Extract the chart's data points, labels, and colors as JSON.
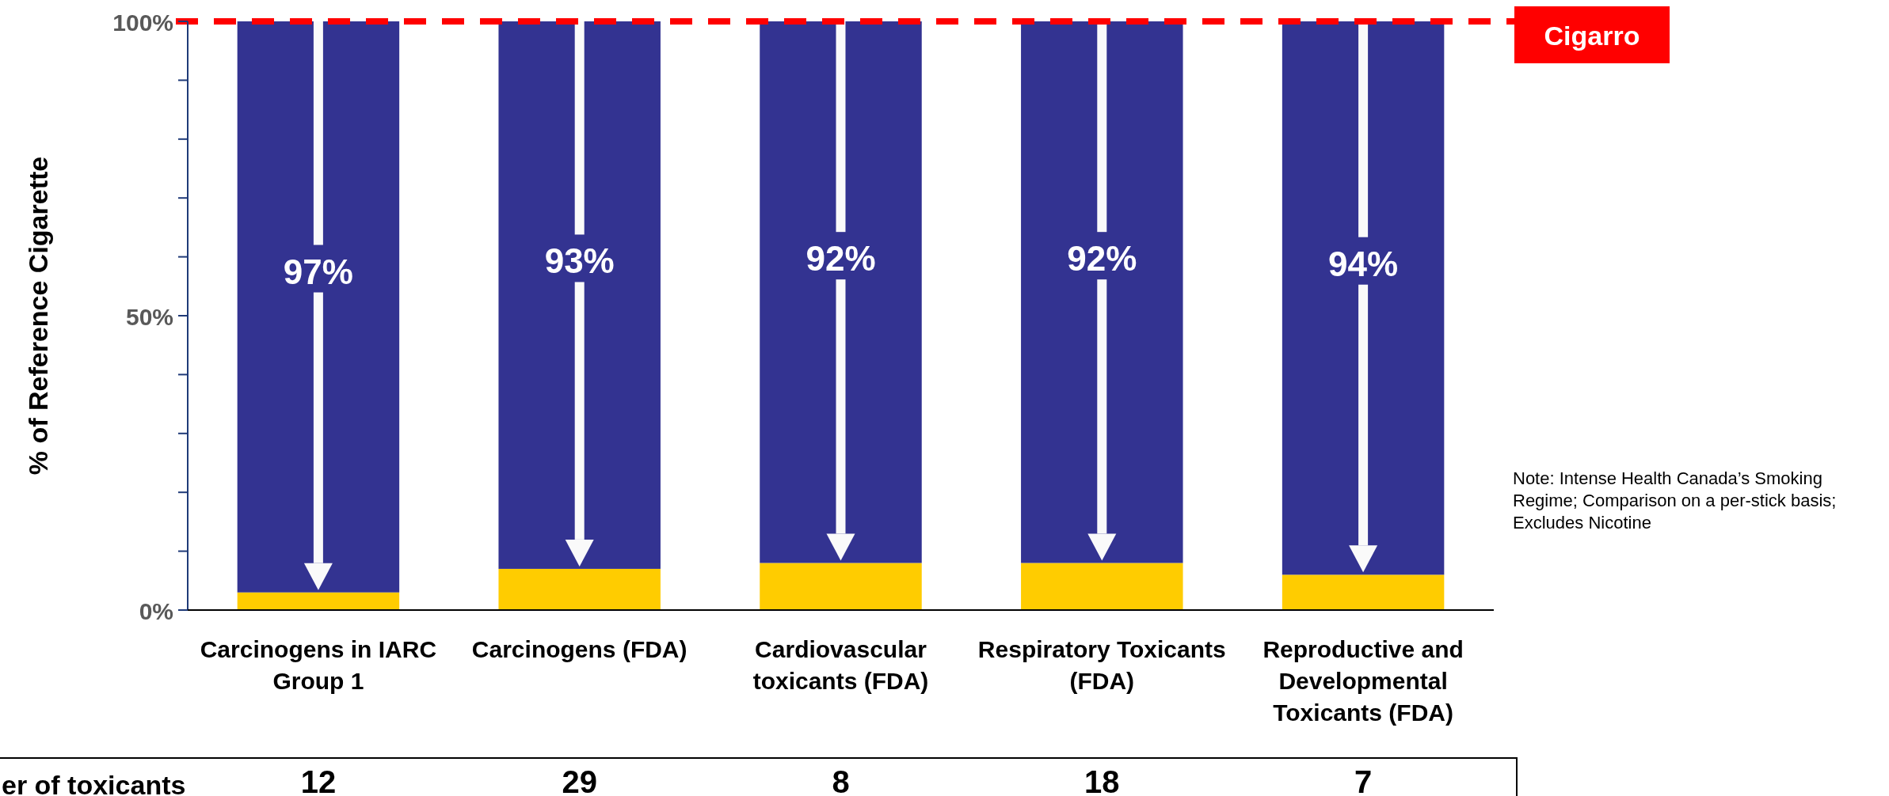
{
  "chart_data": {
    "type": "bar",
    "stacked": true,
    "ylabel": "% of Reference Cigarette",
    "categories": [
      "Carcinogens in IARC Group 1",
      "Carcinogens (FDA)",
      "Cardiovascular toxicants (FDA)",
      "Respiratory Toxicants (FDA)",
      "Reproductive and Developmental Toxicants (FDA)"
    ],
    "series": [
      {
        "color": "#ffcc00",
        "values": [
          3,
          7,
          8,
          8,
          6
        ]
      },
      {
        "color": "#333391",
        "values": [
          97,
          93,
          92,
          92,
          94
        ],
        "value_labels": [
          "97%",
          "93%",
          "92%",
          "92%",
          "94%"
        ]
      }
    ],
    "ylim": [
      0,
      100
    ],
    "yticks": [
      {
        "value": 0,
        "label": "0%"
      },
      {
        "value": 10,
        "label": null
      },
      {
        "value": 20,
        "label": null
      },
      {
        "value": 30,
        "label": null
      },
      {
        "value": 40,
        "label": null
      },
      {
        "value": 50,
        "label": "50%"
      },
      {
        "value": 60,
        "label": null
      },
      {
        "value": 70,
        "label": null
      },
      {
        "value": 80,
        "label": null
      },
      {
        "value": 90,
        "label": null
      },
      {
        "value": 100,
        "label": "100%"
      }
    ],
    "ref_lines": [
      {
        "axis": "y",
        "value": 100,
        "label": "Cigarro",
        "color": "#ff0000",
        "line_style": "dashed"
      }
    ],
    "annotations": [
      "er of toxicants",
      "Note: Intense Health Canada’s Smoking Regime; Comparison on a per-stick basis; Excludes Nicotine",
      "12",
      "29",
      "8",
      "18",
      "7"
    ]
  }
}
